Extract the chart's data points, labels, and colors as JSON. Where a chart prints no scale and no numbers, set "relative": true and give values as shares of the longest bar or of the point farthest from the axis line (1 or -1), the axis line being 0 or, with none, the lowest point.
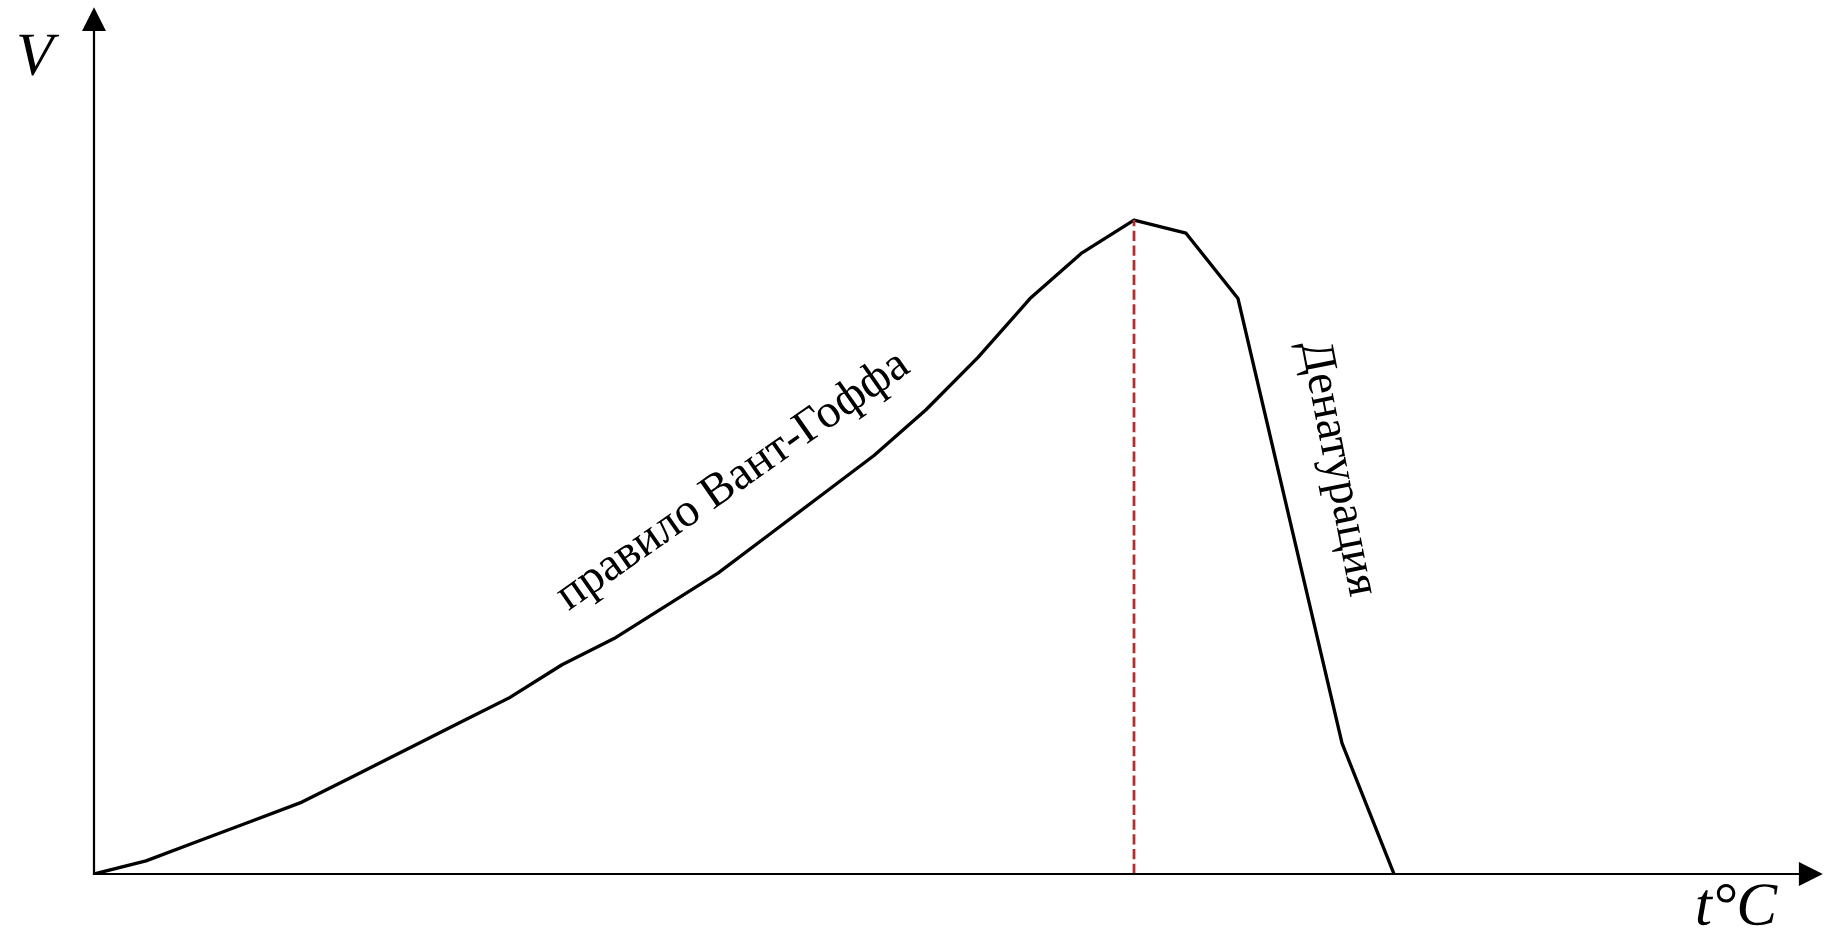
{
  "chart_data": {
    "type": "line",
    "relative": true,
    "xlabel": "t°C",
    "ylabel": "V",
    "categories": [
      null,
      null,
      null,
      null,
      null,
      null,
      null,
      null,
      null,
      null,
      null,
      null,
      null,
      null,
      null,
      null,
      null,
      null,
      null,
      null,
      null,
      null,
      null,
      null,
      null,
      null,
      null,
      null,
      null,
      null,
      null,
      null,
      null,
      null
    ],
    "series": [
      {
        "color": "#000000",
        "values": [
          0,
          0.02,
          0.05,
          0.08,
          0.11,
          0.15,
          0.19,
          0.23,
          0.27,
          0.32,
          0.36,
          0.41,
          0.46,
          0.52,
          0.58,
          0.64,
          0.71,
          0.79,
          0.88,
          0.95,
          1.0,
          0.98,
          0.88,
          0.54,
          0.2,
          0,
          null,
          null,
          null,
          null,
          null,
          null,
          null,
          null
        ]
      }
    ],
    "annotations": [
      "правило Вант-Гоффа",
      "Денатурация"
    ],
    "legend": false,
    "marker": "none",
    "line_style": "solid"
  }
}
